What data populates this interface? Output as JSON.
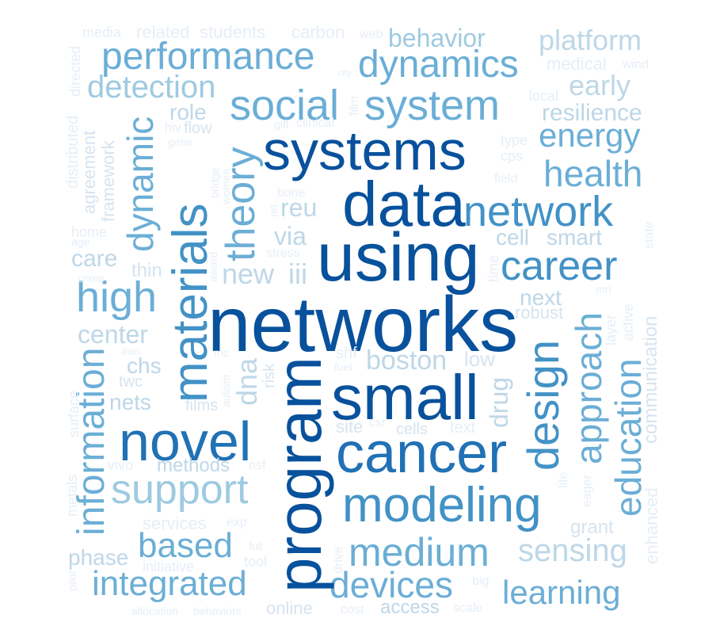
{
  "words": [
    "networks",
    "program",
    "using",
    "data",
    "systems",
    "small",
    "materials",
    "cancer",
    "novel",
    "design",
    "modeling",
    "career",
    "network",
    "social",
    "system",
    "dynamics",
    "performance",
    "health",
    "high",
    "medium",
    "support",
    "theory",
    "information",
    "integrated",
    "devices",
    "approach",
    "education",
    "learning",
    "based",
    "dynamic",
    "detection",
    "energy",
    "behavior",
    "platform",
    "early",
    "sensing",
    "new",
    "resilience",
    "boston",
    "center",
    "iii",
    "via",
    "dna",
    "care",
    "reu",
    "cell",
    "smart",
    "next",
    "drug",
    "chs",
    "nets",
    "role",
    "flow",
    "twc",
    "thin",
    "films",
    "methods",
    "phase",
    "access",
    "online",
    "cells",
    "text",
    "site",
    "csr",
    "low",
    "shf",
    "risk",
    "robust",
    "grant",
    "life",
    "eager",
    "enhanced",
    "communication",
    "mri",
    "active",
    "layer",
    "state",
    "field",
    "type",
    "cps",
    "local",
    "medical",
    "wind",
    "web",
    "carbon",
    "students",
    "related",
    "media",
    "directed",
    "distributed",
    "agreement",
    "framework",
    "home",
    "age",
    "crime",
    "hiv",
    "gene",
    "gift",
    "clinical",
    "city",
    "film",
    "bone",
    "bridge",
    "women",
    "stress",
    "nrt",
    "award",
    "time",
    "iron",
    "fuel",
    "mc",
    "autism",
    "surface",
    "vivo",
    "metals",
    "pilot",
    "services",
    "exp",
    "nsf",
    "full",
    "tool",
    "initiative",
    "allocation",
    "behaviors",
    "cost",
    "scale",
    "big",
    "drive"
  ]
}
